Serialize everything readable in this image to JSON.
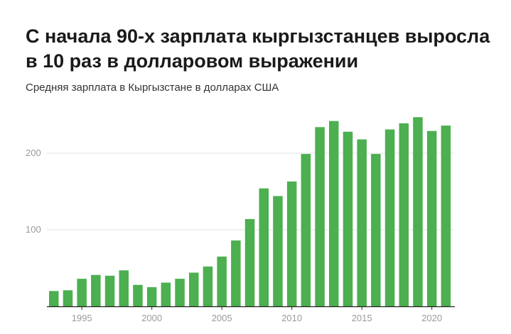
{
  "title": "С начала 90-х зарплата кыргызстанцев выросла в 10 раз в долларовом выражении",
  "subtitle": "Средняя зарплата в Кыргызстане в долларах США",
  "colors": {
    "bar": "#4caf50",
    "grid": "#e3e3e3",
    "axis": "#222222",
    "tick_text": "#9a9a9a"
  },
  "chart_data": {
    "type": "bar",
    "categories": [
      "1993",
      "1994",
      "1995",
      "1996",
      "1997",
      "1998",
      "1999",
      "2000",
      "2001",
      "2002",
      "2003",
      "2004",
      "2005",
      "2006",
      "2007",
      "2008",
      "2009",
      "2010",
      "2011",
      "2012",
      "2013",
      "2014",
      "2015",
      "2016",
      "2017",
      "2018",
      "2019",
      "2020",
      "2021"
    ],
    "values": [
      20,
      21,
      36,
      41,
      40,
      47,
      28,
      25,
      31,
      36,
      44,
      52,
      65,
      86,
      114,
      154,
      144,
      163,
      199,
      234,
      242,
      228,
      218,
      199,
      231,
      239,
      247,
      229,
      236
    ],
    "title": "С начала 90-х зарплата кыргызстанцев выросла в 10 раз в долларовом выражении",
    "subtitle": "Средняя зарплата в Кыргызстане в долларах США",
    "xlabel": "",
    "ylabel": "",
    "ylim": [
      0,
      260
    ],
    "yticks": [
      "100",
      "200"
    ],
    "xticks": [
      "1995",
      "2000",
      "2005",
      "2010",
      "2015",
      "2020"
    ],
    "grid": true,
    "legend": "none"
  }
}
